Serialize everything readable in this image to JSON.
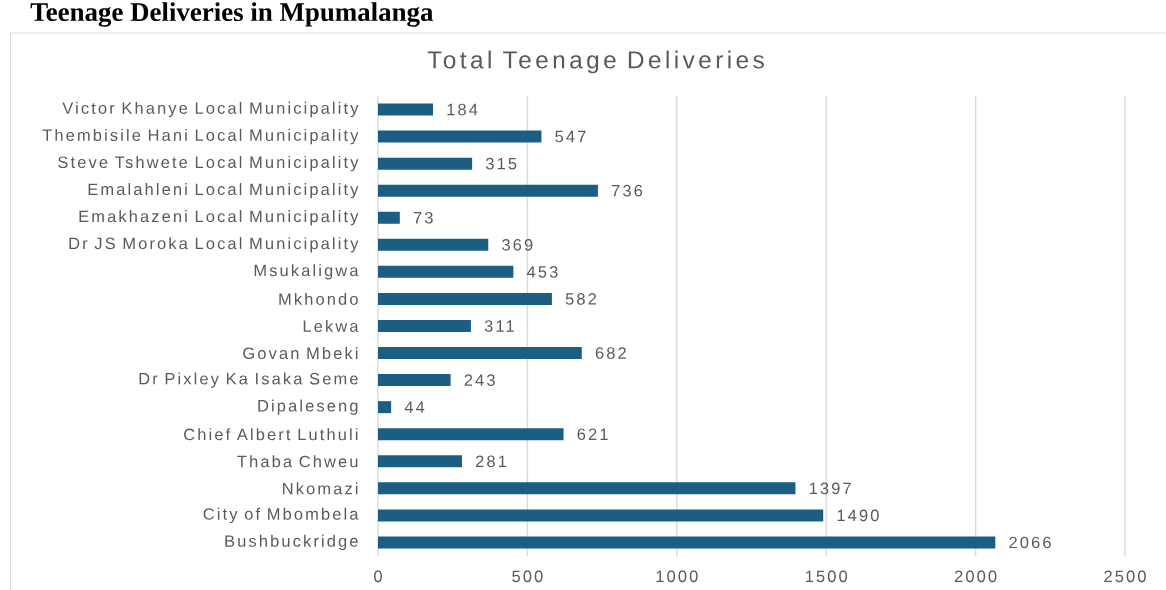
{
  "chart_data": {
    "type": "bar",
    "orientation": "horizontal",
    "title": "Total Teenage Deliveries",
    "annotations": [
      "Teenage Deliveries in Mpumalanga"
    ],
    "categories": [
      "Victor Khanye Local Municipality",
      "Thembisile Hani Local Municipality",
      "Steve Tshwete Local Municipality",
      "Emalahleni Local Municipality",
      "Emakhazeni Local Municipality",
      "Dr JS Moroka Local Municipality",
      "Msukaligwa",
      "Mkhondo",
      "Lekwa",
      "Govan Mbeki",
      "Dr Pixley Ka Isaka Seme",
      "Dipaleseng",
      "Chief Albert Luthuli",
      "Thaba Chweu",
      "Nkomazi",
      "City of Mbombela",
      "Bushbuckridge"
    ],
    "values": [
      184,
      547,
      315,
      736,
      73,
      369,
      453,
      582,
      311,
      682,
      243,
      44,
      621,
      281,
      1397,
      1490,
      2066
    ],
    "color": "#1b5e82",
    "xlim": [
      0,
      2500
    ],
    "xticks": [
      0,
      500,
      1000,
      1500,
      2000,
      2500
    ],
    "grid": "x",
    "data_labels": true
  }
}
